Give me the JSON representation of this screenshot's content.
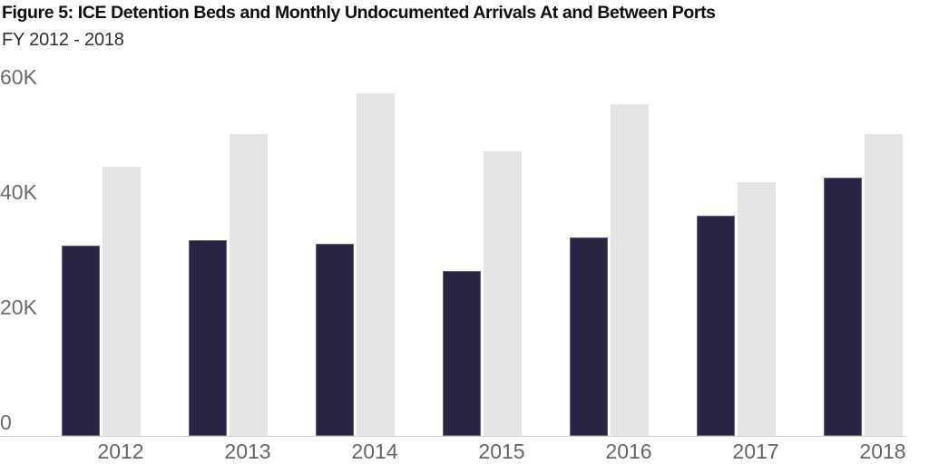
{
  "figure": {
    "title": "Figure 5: ICE Detention Beds and Monthly Undocumented Arrivals At and Between Ports",
    "subtitle": "FY 2012 - 2018"
  },
  "chart_data": {
    "type": "bar",
    "title": "Figure 5: ICE Detention Beds and Monthly Undocumented Arrivals At and Between Ports",
    "subtitle": "FY 2012 - 2018",
    "categories": [
      "2012",
      "2013",
      "2014",
      "2015",
      "2016",
      "2017",
      "2018"
    ],
    "series": [
      {
        "name": "ICE Detention Beds",
        "color": "#2a2342",
        "values_thousands": [
          33.1,
          34.0,
          33.4,
          28.6,
          34.5,
          38.3,
          44.9
        ]
      },
      {
        "name": "Monthly Undocumented Arrivals At and Between Ports",
        "color": "#e4e4e4",
        "values_thousands": [
          46.8,
          52.4,
          59.5,
          49.4,
          57.6,
          44.1,
          52.4
        ]
      }
    ],
    "y_axis": {
      "unit": "thousands",
      "range_thousands": [
        0,
        63
      ],
      "ticks": [
        {
          "value": 0,
          "label": "0"
        },
        {
          "value": 20,
          "label": "20K"
        },
        {
          "value": 40,
          "label": "40K"
        },
        {
          "value": 60,
          "label": "60K"
        }
      ]
    },
    "x_axis": {
      "labels": [
        "2012",
        "2013",
        "2014",
        "2015",
        "2016",
        "2017",
        "2018"
      ]
    },
    "grid": false,
    "legend": "none"
  },
  "colors": {
    "bar_dark": "#2a2342",
    "bar_light": "#e4e4e4",
    "axis_line": "#cfcfcf",
    "tick_text": "#6b6b6b",
    "title_text": "#0d0d0d",
    "subtitle_text": "#303030",
    "background": "#ffffff"
  }
}
